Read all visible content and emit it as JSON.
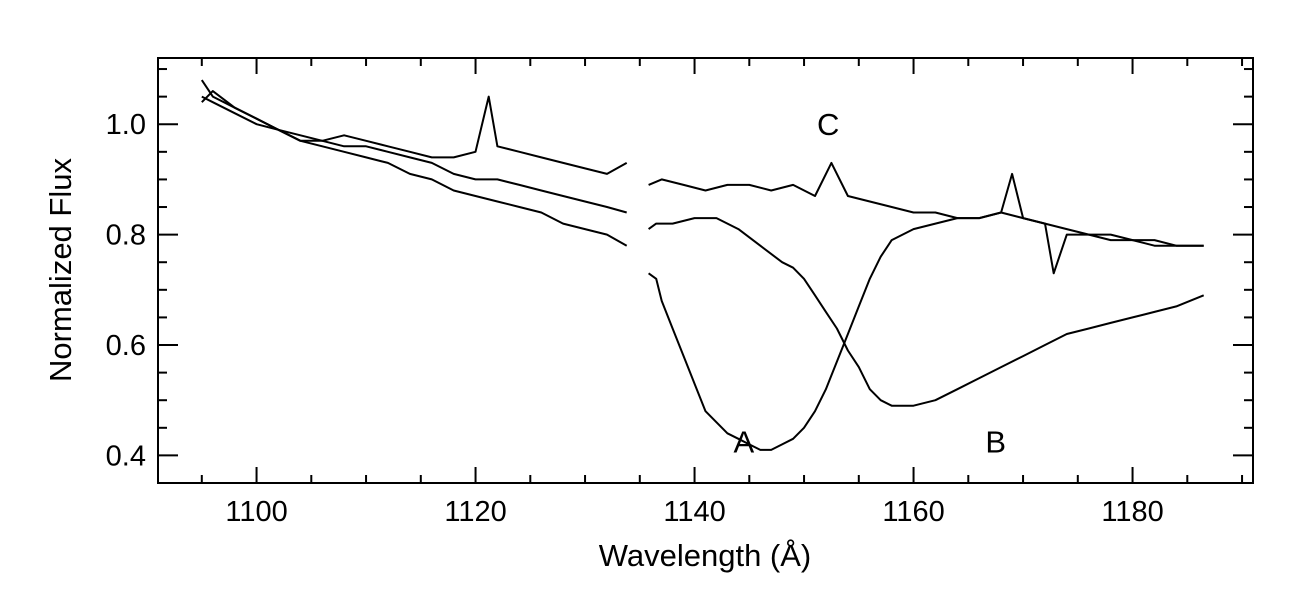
{
  "chart_data": {
    "type": "line",
    "title": "",
    "xlabel": "Wavelength (Å)",
    "ylabel": "Normalized Flux",
    "xlim": [
      1091,
      1191
    ],
    "ylim": [
      0.35,
      1.12
    ],
    "grid": false,
    "legend": "none",
    "x_ticks": [
      1100,
      1120,
      1140,
      1160,
      1180
    ],
    "x_tick_labels": [
      "1100",
      "1120",
      "1140",
      "1160",
      "1180"
    ],
    "y_ticks": [
      0.4,
      0.6,
      0.8,
      1.0
    ],
    "y_tick_labels": [
      "0.4",
      "0.6",
      "0.8",
      "1.0"
    ],
    "annotations": [
      {
        "text": "A",
        "x": 1144.5,
        "y": 0.425
      },
      {
        "text": "B",
        "x": 1167.5,
        "y": 0.425
      },
      {
        "text": "C",
        "x": 1152.2,
        "y": 1.0
      }
    ],
    "series": [
      {
        "segments": [
          {
            "x": [
              1095,
              1096,
              1098,
              1100,
              1102,
              1104,
              1106,
              1108,
              1110,
              1112,
              1114,
              1116,
              1118,
              1120,
              1122,
              1124,
              1126,
              1128,
              1130,
              1132,
              1133.8
            ],
            "y": [
              1.05,
              1.04,
              1.02,
              1.0,
              0.99,
              0.97,
              0.96,
              0.95,
              0.94,
              0.93,
              0.91,
              0.9,
              0.88,
              0.87,
              0.86,
              0.85,
              0.84,
              0.82,
              0.81,
              0.8,
              0.78
            ]
          },
          {
            "x": [
              1135.8,
              1136.5,
              1137,
              1138,
              1139,
              1140,
              1141,
              1142,
              1143,
              1144,
              1145,
              1146,
              1147,
              1148,
              1149,
              1150,
              1151,
              1152,
              1153,
              1154,
              1155,
              1156,
              1157,
              1158,
              1159,
              1160,
              1162,
              1164,
              1166,
              1168,
              1170,
              1172,
              1174,
              1176,
              1178,
              1180,
              1182,
              1184,
              1186.5
            ],
            "y": [
              0.73,
              0.72,
              0.68,
              0.63,
              0.58,
              0.53,
              0.48,
              0.46,
              0.44,
              0.43,
              0.42,
              0.41,
              0.41,
              0.42,
              0.43,
              0.45,
              0.48,
              0.52,
              0.57,
              0.62,
              0.67,
              0.72,
              0.76,
              0.79,
              0.8,
              0.81,
              0.82,
              0.83,
              0.83,
              0.84,
              0.83,
              0.82,
              0.81,
              0.8,
              0.8,
              0.79,
              0.79,
              0.78,
              0.78
            ]
          }
        ]
      },
      {
        "segments": [
          {
            "x": [
              1095,
              1096,
              1098,
              1100,
              1102,
              1104,
              1106,
              1108,
              1110,
              1112,
              1114,
              1116,
              1118,
              1120,
              1122,
              1124,
              1126,
              1128,
              1130,
              1132,
              1133.8
            ],
            "y": [
              1.04,
              1.06,
              1.03,
              1.01,
              0.99,
              0.97,
              0.97,
              0.96,
              0.96,
              0.95,
              0.94,
              0.93,
              0.91,
              0.9,
              0.9,
              0.89,
              0.88,
              0.87,
              0.86,
              0.85,
              0.84
            ]
          },
          {
            "x": [
              1135.8,
              1136.5,
              1138,
              1140,
              1142,
              1144,
              1146,
              1148,
              1149,
              1150,
              1151,
              1152,
              1153,
              1154,
              1155,
              1156,
              1157,
              1158,
              1160,
              1162,
              1164,
              1166,
              1168,
              1170,
              1172,
              1174,
              1176,
              1178,
              1180,
              1182,
              1184,
              1186.5
            ],
            "y": [
              0.81,
              0.82,
              0.82,
              0.83,
              0.83,
              0.81,
              0.78,
              0.75,
              0.74,
              0.72,
              0.69,
              0.66,
              0.63,
              0.59,
              0.56,
              0.52,
              0.5,
              0.49,
              0.49,
              0.5,
              0.52,
              0.54,
              0.56,
              0.58,
              0.6,
              0.62,
              0.63,
              0.64,
              0.65,
              0.66,
              0.67,
              0.69
            ]
          }
        ]
      },
      {
        "segments": [
          {
            "x": [
              1095,
              1096,
              1098,
              1100,
              1102,
              1104,
              1106,
              1108,
              1110,
              1112,
              1114,
              1116,
              1118,
              1120,
              1121.2,
              1122,
              1124,
              1126,
              1128,
              1130,
              1132,
              1133.8
            ],
            "y": [
              1.08,
              1.05,
              1.03,
              1.01,
              0.99,
              0.98,
              0.97,
              0.98,
              0.97,
              0.96,
              0.95,
              0.94,
              0.94,
              0.95,
              1.05,
              0.96,
              0.95,
              0.94,
              0.93,
              0.92,
              0.91,
              0.93
            ]
          },
          {
            "x": [
              1135.8,
              1137,
              1139,
              1141,
              1143,
              1145,
              1147,
              1149,
              1151,
              1152.5,
              1154,
              1156,
              1158,
              1160,
              1162,
              1164,
              1166,
              1168,
              1169,
              1170,
              1172,
              1172.8,
              1174,
              1176,
              1178,
              1180,
              1182,
              1184,
              1186.5
            ],
            "y": [
              0.89,
              0.9,
              0.89,
              0.88,
              0.89,
              0.89,
              0.88,
              0.89,
              0.87,
              0.93,
              0.87,
              0.86,
              0.85,
              0.84,
              0.84,
              0.83,
              0.83,
              0.84,
              0.91,
              0.83,
              0.82,
              0.73,
              0.8,
              0.8,
              0.79,
              0.79,
              0.78,
              0.78,
              0.78
            ]
          }
        ]
      }
    ]
  }
}
